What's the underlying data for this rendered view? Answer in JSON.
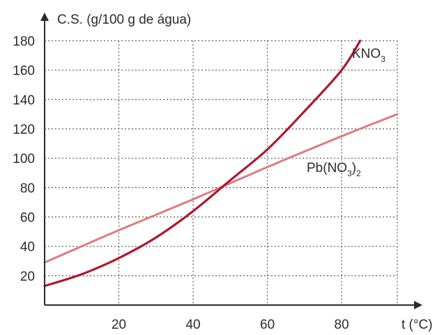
{
  "chart_data": {
    "type": "line",
    "title": "",
    "ylabel": "C.S. (g/100 g de água)",
    "xlabel": "t (°C)",
    "xlim": [
      0,
      95
    ],
    "ylim": [
      0,
      185
    ],
    "x_ticks": [
      20,
      40,
      60,
      80
    ],
    "y_ticks": [
      20,
      40,
      60,
      80,
      100,
      120,
      140,
      160,
      180
    ],
    "x_tick_labels": [
      "20",
      "40",
      "60",
      "80"
    ],
    "y_tick_labels": [
      "20",
      "40",
      "60",
      "80",
      "100",
      "120",
      "140",
      "160",
      "180"
    ],
    "grid": true,
    "grid_style": "dotted",
    "series": [
      {
        "name": "KNO3",
        "label_main": "KNO",
        "label_sub": "3",
        "color": "#b5152b",
        "x": [
          0,
          10,
          20,
          30,
          40,
          50,
          60,
          70,
          80,
          85
        ],
        "y": [
          13,
          21,
          32,
          46,
          64,
          85,
          106,
          132,
          160,
          180
        ]
      },
      {
        "name": "Pb(NO3)2",
        "label_parts": [
          "Pb(NO",
          "3",
          ")",
          "2"
        ],
        "color": "#e07a7f",
        "x": [
          0,
          20,
          40,
          60,
          80,
          95
        ],
        "y": [
          29,
          51,
          72,
          94,
          115,
          130
        ]
      }
    ],
    "axis_color": "#2b2b2b",
    "grid_color": "#555555"
  }
}
